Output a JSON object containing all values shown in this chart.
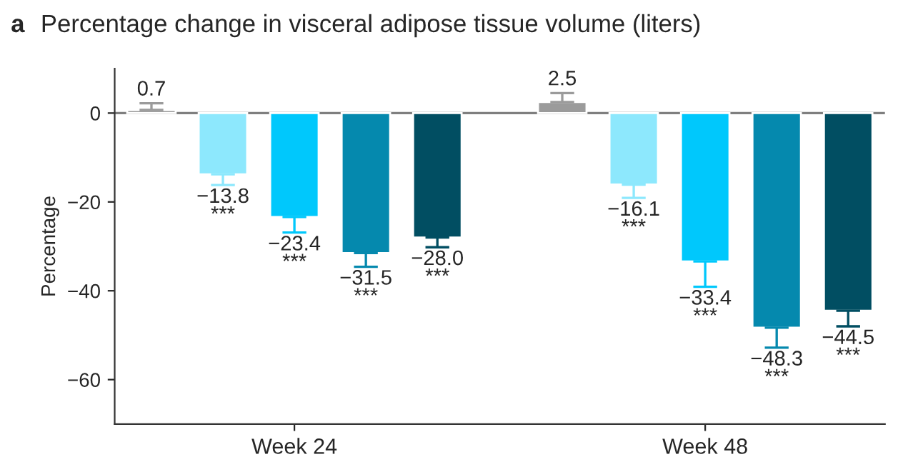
{
  "chart_data": {
    "type": "bar",
    "title": "Percentage change in visceral adipose tissue volume (liters)",
    "annotations": [
      "a"
    ],
    "ylabel": "Percentage",
    "categories": [
      "Week 24",
      "Week 48"
    ],
    "series": [
      {
        "color": "#9b9b9b",
        "values": [
          0.7,
          2.5
        ],
        "errors": [
          [
            0.7,
            2.2
          ],
          [
            2.5,
            4.5
          ]
        ],
        "value_labels": [
          "0.7",
          "2.5"
        ]
      },
      {
        "color": "#8de8fd",
        "values": [
          -13.8,
          -16.1
        ],
        "errors": [
          [
            -16.2,
            -13.8
          ],
          [
            -19.1,
            -16.1
          ]
        ],
        "value_labels": [
          "−13.8\n***",
          "−16.1\n***"
        ]
      },
      {
        "color": "#00c8fc",
        "values": [
          -23.4,
          -33.4
        ],
        "errors": [
          [
            -26.9,
            -23.4
          ],
          [
            -39.1,
            -33.4
          ]
        ],
        "value_labels": [
          "−23.4\n***",
          "−33.4\n***"
        ]
      },
      {
        "color": "#0589ae",
        "values": [
          -31.5,
          -48.3
        ],
        "errors": [
          [
            -34.6,
            -31.5
          ],
          [
            -52.8,
            -48.3
          ]
        ],
        "value_labels": [
          "−31.5\n***",
          "−48.3\n***"
        ]
      },
      {
        "color": "#014e62",
        "values": [
          -28.0,
          -44.5
        ],
        "errors": [
          [
            -30.2,
            -28.0
          ],
          [
            -48.0,
            -44.5
          ]
        ],
        "value_labels": [
          "−28.0\n***",
          "−44.5\n***"
        ]
      }
    ],
    "ylim": [
      -70,
      10
    ],
    "yticks": [
      0,
      {
        "value": -20,
        "label": "−20"
      },
      {
        "value": -40,
        "label": "−40"
      },
      {
        "value": -60,
        "label": "−60"
      }
    ],
    "ref_lines": [
      {
        "axis": "y",
        "value": 0,
        "color": "#7f7f7f"
      }
    ],
    "grid": false,
    "legend": false
  }
}
